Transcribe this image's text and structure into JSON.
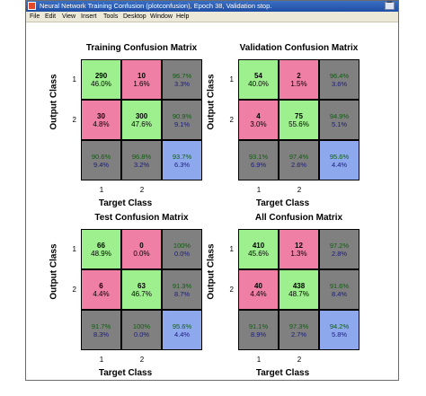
{
  "window": {
    "title": "Neural Network Training Confusion (plotconfusion), Epoch 38, Validation stop.",
    "minimize_glyph": "▔"
  },
  "menu": [
    "File",
    "Edit",
    "View",
    "Insert",
    "Tools",
    "Desktop",
    "Window",
    "Help"
  ],
  "icons": {
    "app": "matlab-figure-icon",
    "minimize": "minimize-icon"
  },
  "colors": {
    "correct": "#9ef08e",
    "incorrect": "#f07fa6",
    "summary": "#808080",
    "overall": "#8ea8ee"
  },
  "axis": {
    "xlabel": "Target Class",
    "ylabel": "Output Class",
    "classes": [
      "1",
      "2"
    ]
  },
  "panels": [
    {
      "title": "Training Confusion Matrix",
      "cells": [
        [
          "290",
          "46.0%"
        ],
        [
          "10",
          "1.6%"
        ],
        [
          "96.7%",
          "3.3%"
        ],
        [
          "30",
          "4.8%"
        ],
        [
          "300",
          "47.6%"
        ],
        [
          "90.9%",
          "9.1%"
        ],
        [
          "90.6%",
          "9.4%"
        ],
        [
          "96.8%",
          "3.2%"
        ],
        [
          "93.7%",
          "6.3%"
        ]
      ]
    },
    {
      "title": "Validation Confusion Matrix",
      "cells": [
        [
          "54",
          "40.0%"
        ],
        [
          "2",
          "1.5%"
        ],
        [
          "96.4%",
          "3.6%"
        ],
        [
          "4",
          "3.0%"
        ],
        [
          "75",
          "55.6%"
        ],
        [
          "94.9%",
          "5.1%"
        ],
        [
          "93.1%",
          "6.9%"
        ],
        [
          "97.4%",
          "2.6%"
        ],
        [
          "95.6%",
          "4.4%"
        ]
      ]
    },
    {
      "title": "Test Confusion Matrix",
      "cells": [
        [
          "66",
          "48.9%"
        ],
        [
          "0",
          "0.0%"
        ],
        [
          "100%",
          "0.0%"
        ],
        [
          "6",
          "4.4%"
        ],
        [
          "63",
          "46.7%"
        ],
        [
          "91.3%",
          "8.7%"
        ],
        [
          "91.7%",
          "8.3%"
        ],
        [
          "100%",
          "0.0%"
        ],
        [
          "95.6%",
          "4.4%"
        ]
      ]
    },
    {
      "title": "All Confusion Matrix",
      "cells": [
        [
          "410",
          "45.6%"
        ],
        [
          "12",
          "1.3%"
        ],
        [
          "97.2%",
          "2.8%"
        ],
        [
          "40",
          "4.4%"
        ],
        [
          "438",
          "48.7%"
        ],
        [
          "91.6%",
          "8.4%"
        ],
        [
          "91.1%",
          "8.9%"
        ],
        [
          "97.3%",
          "2.7%"
        ],
        [
          "94.2%",
          "5.8%"
        ]
      ]
    }
  ]
}
